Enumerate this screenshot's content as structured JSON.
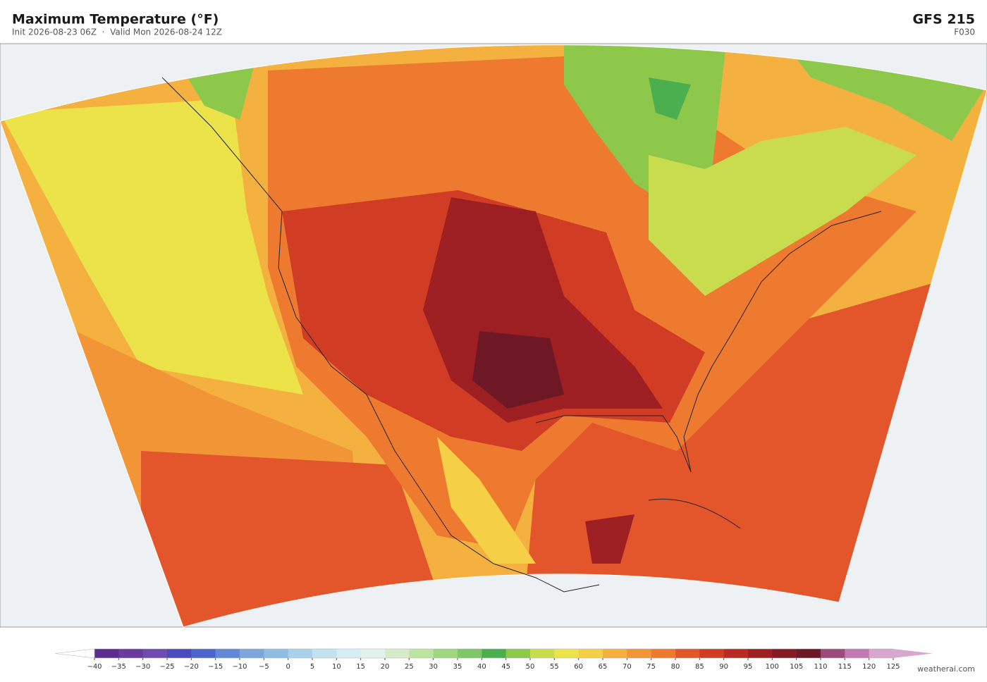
{
  "header": {
    "title": "Maximum Temperature  (°F)",
    "subtitle": "Init 2026-08-23 06Z  ·  Valid Mon 2026-08-24 12Z",
    "model": "GFS  215",
    "forecast_hour": "F030"
  },
  "colorbar": {
    "ticks": [
      {
        "value": -40,
        "label": "−40"
      },
      {
        "value": -35,
        "label": "−35"
      },
      {
        "value": -30,
        "label": "−30"
      },
      {
        "value": -25,
        "label": "−25"
      },
      {
        "value": -20,
        "label": "−20"
      },
      {
        "value": -15,
        "label": "−15"
      },
      {
        "value": -10,
        "label": "−10"
      },
      {
        "value": -5,
        "label": "−5"
      },
      0,
      5,
      10,
      15,
      20,
      25,
      30,
      35,
      40,
      45,
      50,
      55,
      60,
      65,
      70,
      75,
      80,
      85,
      90,
      95,
      100,
      105,
      110,
      115,
      120,
      125
    ],
    "colors": [
      "#5b2c8f",
      "#6a3a9c",
      "#6f4bb0",
      "#4a4bbf",
      "#4d64cc",
      "#6288d6",
      "#7ea6dc",
      "#8fbde2",
      "#a9d2ea",
      "#c2e2ef",
      "#d6edf2",
      "#e2f3ef",
      "#d5eccb",
      "#bde3a0",
      "#a0d680",
      "#7fc666",
      "#4caf4f",
      "#8dc84a",
      "#c9dc4e",
      "#ece34a",
      "#f5cf45",
      "#f4b13f",
      "#f29537",
      "#ee7a30",
      "#e3552a",
      "#d03c24",
      "#b82a22",
      "#9e1f22",
      "#861a25",
      "#6e1826",
      "#9c4a7a",
      "#c27ab4",
      "#d9a6cf"
    ],
    "under_color": "#ffffff",
    "over_color": "#d9a6cf"
  },
  "footer": {
    "credit": "weatherai.com"
  }
}
